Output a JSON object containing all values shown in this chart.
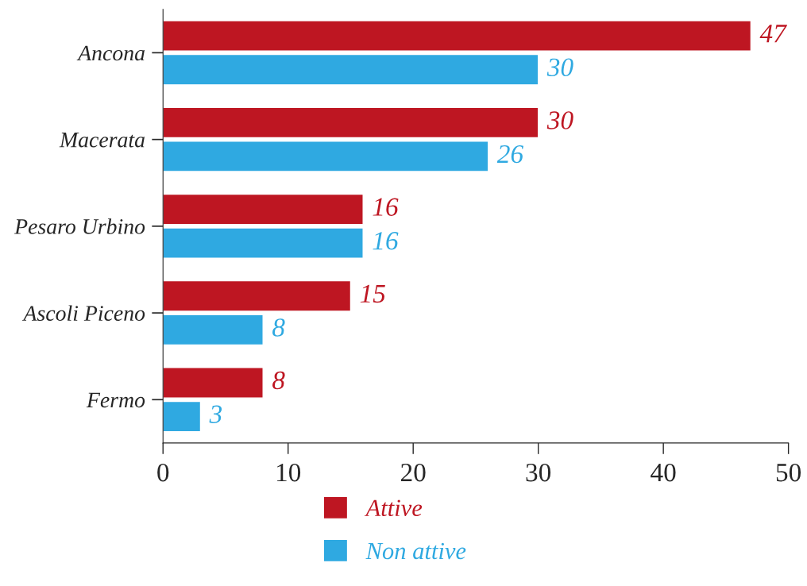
{
  "chart_data": {
    "type": "bar",
    "orientation": "horizontal",
    "categories": [
      "Ancona",
      "Macerata",
      "Pesaro Urbino",
      "Ascoli Piceno",
      "Fermo"
    ],
    "series": [
      {
        "name": "Attive",
        "color": "#be1622",
        "values": [
          47,
          30,
          16,
          15,
          8
        ]
      },
      {
        "name": "Non attive",
        "color": "#2fa9e1",
        "values": [
          30,
          26,
          16,
          8,
          3
        ]
      }
    ],
    "xlim": [
      0,
      50
    ],
    "xticks": [
      0,
      10,
      20,
      30,
      40,
      50
    ],
    "data_labels": true,
    "grid": false,
    "legend": "bottom"
  }
}
